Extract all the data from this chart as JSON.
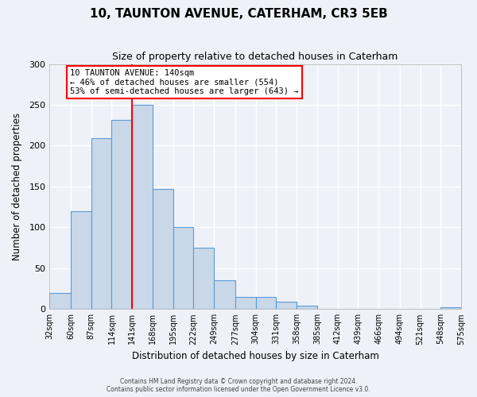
{
  "title": "10, TAUNTON AVENUE, CATERHAM, CR3 5EB",
  "subtitle": "Size of property relative to detached houses in Caterham",
  "xlabel": "Distribution of detached houses by size in Caterham",
  "ylabel": "Number of detached properties",
  "bar_color": "#c8d8e8",
  "bar_edge_color": "#5b9bd5",
  "background_color": "#eef2f8",
  "grid_color": "#ffffff",
  "bins": [
    32,
    60,
    87,
    114,
    141,
    168,
    195,
    222,
    249,
    277,
    304,
    331,
    358,
    385,
    412,
    439,
    466,
    494,
    521,
    548,
    575
  ],
  "bin_labels": [
    "32sqm",
    "60sqm",
    "87sqm",
    "114sqm",
    "141sqm",
    "168sqm",
    "195sqm",
    "222sqm",
    "249sqm",
    "277sqm",
    "304sqm",
    "331sqm",
    "358sqm",
    "385sqm",
    "412sqm",
    "439sqm",
    "466sqm",
    "494sqm",
    "521sqm",
    "548sqm",
    "575sqm"
  ],
  "counts": [
    20,
    120,
    209,
    232,
    250,
    147,
    100,
    75,
    35,
    15,
    15,
    9,
    4,
    0,
    0,
    0,
    0,
    0,
    0,
    2
  ],
  "red_line_x": 141,
  "annotation_text_line1": "10 TAUNTON AVENUE: 140sqm",
  "annotation_text_line2": "← 46% of detached houses are smaller (554)",
  "annotation_text_line3": "53% of semi-detached houses are larger (643) →",
  "ylim": [
    0,
    300
  ],
  "yticks": [
    0,
    50,
    100,
    150,
    200,
    250,
    300
  ],
  "footer_line1": "Contains HM Land Registry data © Crown copyright and database right 2024.",
  "footer_line2": "Contains public sector information licensed under the Open Government Licence v3.0."
}
